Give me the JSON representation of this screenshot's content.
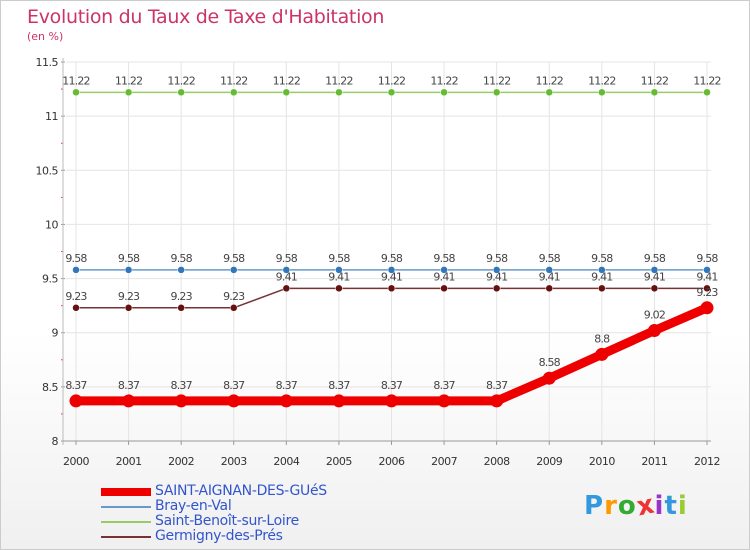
{
  "chart_data": {
    "type": "line",
    "title": "Evolution du Taux de Taxe d'Habitation",
    "subtitle": "(en %)",
    "xlabel": "",
    "ylabel": "",
    "ylim": [
      8,
      11.5
    ],
    "yticks": [
      "8",
      "8.5",
      "9",
      "9.5",
      "10",
      "10.5",
      "11",
      "11.5"
    ],
    "categories": [
      "2000",
      "2001",
      "2002",
      "2003",
      "2004",
      "2005",
      "2006",
      "2007",
      "2008",
      "2009",
      "2010",
      "2011",
      "2012"
    ],
    "series": [
      {
        "name": "Saint-Benoît-sur-Loire",
        "color": "#99cc66",
        "marker_color": "#66bb33",
        "values": [
          11.22,
          11.22,
          11.22,
          11.22,
          11.22,
          11.22,
          11.22,
          11.22,
          11.22,
          11.22,
          11.22,
          11.22,
          11.22
        ],
        "labels": [
          "11.22",
          "11.22",
          "11.22",
          "11.22",
          "11.22",
          "11.22",
          "11.22",
          "11.22",
          "11.22",
          "11.22",
          "11.22",
          "11.22",
          "11.22"
        ]
      },
      {
        "name": "Bray-en-Val",
        "color": "#6699cc",
        "marker_color": "#3377bb",
        "values": [
          9.58,
          9.58,
          9.58,
          9.58,
          9.58,
          9.58,
          9.58,
          9.58,
          9.58,
          9.58,
          9.58,
          9.58,
          9.58
        ],
        "labels": [
          "9.58",
          "9.58",
          "9.58",
          "9.58",
          "9.58",
          "9.58",
          "9.58",
          "9.58",
          "9.58",
          "9.58",
          "9.58",
          "9.58",
          "9.58"
        ]
      },
      {
        "name": "Germigny-des-Prés",
        "color": "#773333",
        "marker_color": "#661111",
        "values": [
          9.23,
          9.23,
          9.23,
          9.23,
          9.41,
          9.41,
          9.41,
          9.41,
          9.41,
          9.41,
          9.41,
          9.41,
          9.41
        ],
        "labels": [
          "9.23",
          "9.23",
          "9.23",
          "9.23",
          "9.41",
          "9.41",
          "9.41",
          "9.41",
          "9.41",
          "9.41",
          "9.41",
          "9.41",
          "9.41"
        ]
      },
      {
        "name": "SAINT-AIGNAN-DES-GUéS",
        "color": "#ee0000",
        "marker_color": "#ee0000",
        "values": [
          8.37,
          8.37,
          8.37,
          8.37,
          8.37,
          8.37,
          8.37,
          8.37,
          8.37,
          8.58,
          8.8,
          9.02,
          9.23
        ],
        "labels": [
          "8.37",
          "8.37",
          "8.37",
          "8.37",
          "8.37",
          "8.37",
          "8.37",
          "8.37",
          "8.37",
          "8.58",
          "8.8",
          "9.02",
          "9.23"
        ]
      }
    ],
    "legend": [
      {
        "name": "SAINT-AIGNAN-DES-GUéS",
        "color": "#ee0000"
      },
      {
        "name": "Bray-en-Val",
        "color": "#6699cc"
      },
      {
        "name": "Saint-Benoît-sur-Loire",
        "color": "#99cc66"
      },
      {
        "name": "Germigny-des-Prés",
        "color": "#773333"
      }
    ],
    "legend_position": "bottom-left"
  },
  "brand": {
    "letters": [
      "P",
      "r",
      "o",
      "x",
      "i",
      "t",
      "i"
    ],
    "colors": [
      "#3399dd",
      "#ff9900",
      "#33aa33",
      "#ee3333",
      "#9933cc",
      "#3399dd",
      "#99cc33"
    ]
  }
}
